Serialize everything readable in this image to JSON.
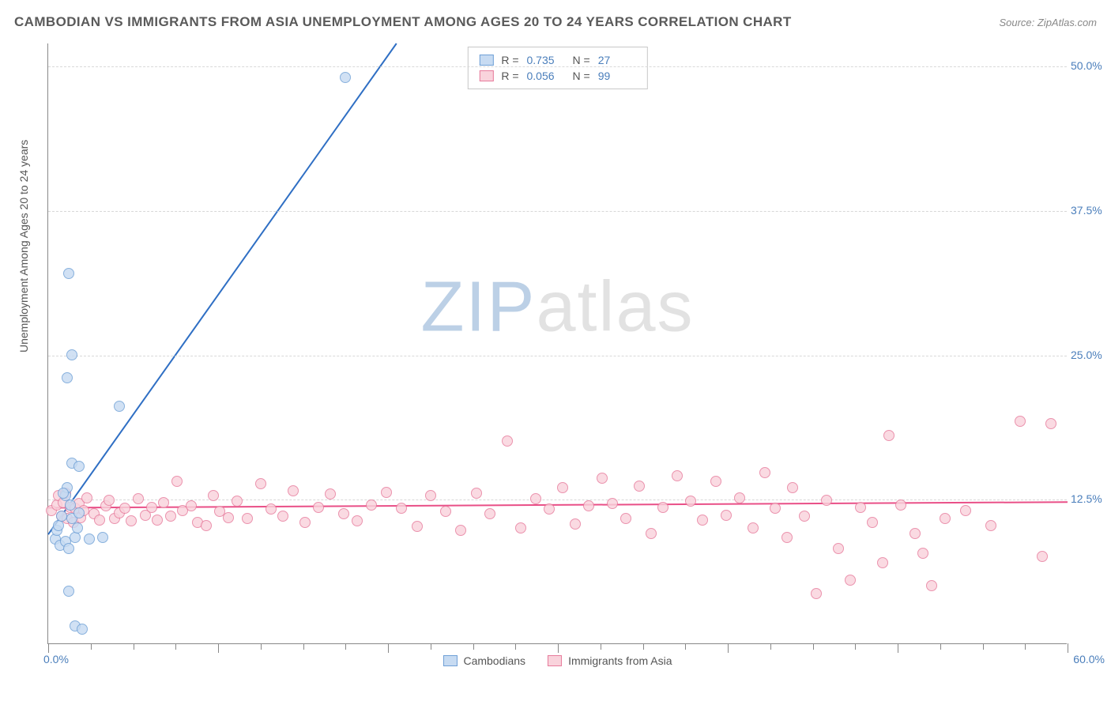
{
  "title": "CAMBODIAN VS IMMIGRANTS FROM ASIA UNEMPLOYMENT AMONG AGES 20 TO 24 YEARS CORRELATION CHART",
  "source": "Source: ZipAtlas.com",
  "watermark_a": "ZIP",
  "watermark_b": "atlas",
  "ylabel": "Unemployment Among Ages 20 to 24 years",
  "chart": {
    "type": "scatter",
    "xlim": [
      0,
      60
    ],
    "ylim": [
      0,
      52
    ],
    "xticks_major": [
      0,
      10,
      20,
      30,
      40,
      50,
      60
    ],
    "xticks_minor_step": 2.5,
    "ytick_labels": [
      12.5,
      25.0,
      37.5,
      50.0
    ],
    "xlim_labels": {
      "min": "0.0%",
      "max": "60.0%"
    },
    "gridline_color": "#d8d8d8",
    "axis_color": "#888888",
    "background": "#ffffff",
    "ytick_color": "#4a7ebb",
    "marker_radius": 7,
    "marker_stroke_width": 1.2,
    "regression_line_width": 2
  },
  "stats": {
    "r_label": "R  =",
    "n_label": "N  =",
    "rows": [
      {
        "series": "cambodians",
        "r": "0.735",
        "n": "27"
      },
      {
        "series": "asia",
        "r": "0.056",
        "n": "99"
      }
    ]
  },
  "series": {
    "cambodians": {
      "label": "Cambodians",
      "fill": "#c7dbf2",
      "stroke": "#6fa0d6",
      "line_color": "#2f6fc4",
      "regression": {
        "x0": 0,
        "y0": 9.5,
        "x1": 20.5,
        "y1": 52
      },
      "points": [
        [
          0.4,
          9.0
        ],
        [
          0.5,
          9.8
        ],
        [
          0.7,
          8.5
        ],
        [
          0.6,
          10.2
        ],
        [
          0.8,
          11.0
        ],
        [
          1.0,
          12.8
        ],
        [
          1.1,
          13.5
        ],
        [
          0.9,
          13.0
        ],
        [
          1.3,
          12.0
        ],
        [
          1.4,
          10.8
        ],
        [
          1.0,
          8.8
        ],
        [
          1.2,
          8.2
        ],
        [
          1.6,
          9.2
        ],
        [
          1.7,
          10.0
        ],
        [
          1.8,
          11.3
        ],
        [
          1.4,
          15.6
        ],
        [
          1.8,
          15.3
        ],
        [
          1.1,
          23.0
        ],
        [
          1.4,
          25.0
        ],
        [
          1.2,
          32.0
        ],
        [
          4.2,
          20.5
        ],
        [
          1.2,
          4.5
        ],
        [
          1.6,
          1.5
        ],
        [
          2.0,
          1.2
        ],
        [
          2.4,
          9.0
        ],
        [
          3.2,
          9.2
        ],
        [
          17.5,
          49.0
        ]
      ]
    },
    "asia": {
      "label": "Immigrants from Asia",
      "fill": "#f9d3dc",
      "stroke": "#e77b9c",
      "line_color": "#e94f87",
      "regression": {
        "x0": 0,
        "y0": 11.8,
        "x1": 60,
        "y1": 12.3
      },
      "points": [
        [
          0.2,
          11.5
        ],
        [
          0.5,
          12.0
        ],
        [
          0.6,
          12.8
        ],
        [
          0.8,
          11.0
        ],
        [
          0.9,
          12.2
        ],
        [
          1.0,
          13.0
        ],
        [
          1.1,
          10.8
        ],
        [
          1.3,
          11.8
        ],
        [
          1.5,
          10.5
        ],
        [
          1.6,
          11.7
        ],
        [
          1.8,
          12.1
        ],
        [
          1.9,
          10.9
        ],
        [
          2.1,
          11.5
        ],
        [
          2.3,
          12.6
        ],
        [
          2.7,
          11.2
        ],
        [
          3.0,
          10.7
        ],
        [
          3.4,
          11.9
        ],
        [
          3.6,
          12.4
        ],
        [
          3.9,
          10.8
        ],
        [
          4.2,
          11.3
        ],
        [
          4.5,
          11.7
        ],
        [
          4.9,
          10.6
        ],
        [
          5.3,
          12.5
        ],
        [
          5.7,
          11.1
        ],
        [
          6.1,
          11.8
        ],
        [
          6.4,
          10.7
        ],
        [
          6.8,
          12.2
        ],
        [
          7.2,
          11.0
        ],
        [
          7.6,
          14.0
        ],
        [
          7.9,
          11.5
        ],
        [
          8.4,
          11.9
        ],
        [
          8.8,
          10.5
        ],
        [
          9.3,
          10.2
        ],
        [
          9.7,
          12.8
        ],
        [
          10.1,
          11.4
        ],
        [
          10.6,
          10.9
        ],
        [
          11.1,
          12.3
        ],
        [
          11.7,
          10.8
        ],
        [
          12.5,
          13.8
        ],
        [
          13.1,
          11.6
        ],
        [
          13.8,
          11.0
        ],
        [
          14.4,
          13.2
        ],
        [
          15.1,
          10.5
        ],
        [
          15.9,
          11.8
        ],
        [
          16.6,
          12.9
        ],
        [
          17.4,
          11.2
        ],
        [
          18.2,
          10.6
        ],
        [
          19.0,
          12.0
        ],
        [
          19.9,
          13.1
        ],
        [
          20.8,
          11.7
        ],
        [
          21.7,
          10.1
        ],
        [
          22.5,
          12.8
        ],
        [
          23.4,
          11.4
        ],
        [
          24.3,
          9.8
        ],
        [
          25.2,
          13.0
        ],
        [
          26.0,
          11.2
        ],
        [
          27.0,
          17.5
        ],
        [
          27.8,
          10.0
        ],
        [
          28.7,
          12.5
        ],
        [
          29.5,
          11.6
        ],
        [
          30.3,
          13.5
        ],
        [
          31.0,
          10.3
        ],
        [
          31.8,
          11.9
        ],
        [
          32.6,
          14.3
        ],
        [
          33.2,
          12.1
        ],
        [
          34.0,
          10.8
        ],
        [
          34.8,
          13.6
        ],
        [
          35.5,
          9.5
        ],
        [
          36.2,
          11.8
        ],
        [
          37.0,
          14.5
        ],
        [
          37.8,
          12.3
        ],
        [
          38.5,
          10.7
        ],
        [
          39.3,
          14.0
        ],
        [
          39.9,
          11.1
        ],
        [
          40.7,
          12.6
        ],
        [
          41.5,
          10.0
        ],
        [
          42.2,
          14.8
        ],
        [
          42.8,
          11.7
        ],
        [
          43.5,
          9.2
        ],
        [
          43.8,
          13.5
        ],
        [
          44.5,
          11.0
        ],
        [
          45.2,
          4.3
        ],
        [
          45.8,
          12.4
        ],
        [
          46.5,
          8.2
        ],
        [
          47.2,
          5.5
        ],
        [
          47.8,
          11.8
        ],
        [
          48.5,
          10.5
        ],
        [
          49.1,
          7.0
        ],
        [
          49.5,
          18.0
        ],
        [
          50.2,
          12.0
        ],
        [
          51.0,
          9.5
        ],
        [
          51.5,
          7.8
        ],
        [
          52.0,
          5.0
        ],
        [
          52.8,
          10.8
        ],
        [
          54.0,
          11.5
        ],
        [
          55.5,
          10.2
        ],
        [
          57.2,
          19.2
        ],
        [
          58.5,
          7.5
        ],
        [
          59.0,
          19.0
        ]
      ]
    }
  }
}
